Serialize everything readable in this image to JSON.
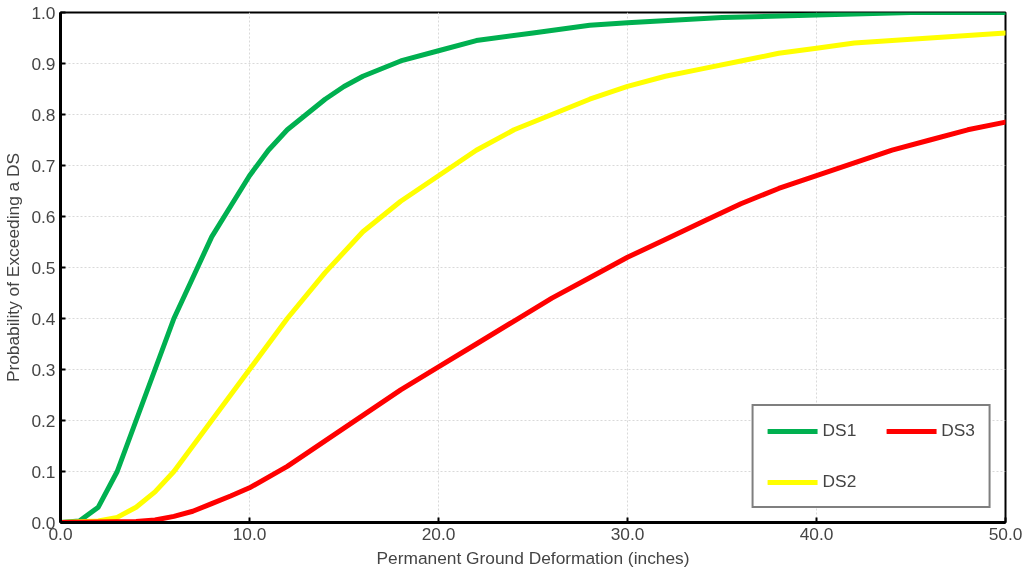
{
  "chart_data": {
    "type": "line",
    "xlabel": "Permanent Ground Deformation (inches)",
    "ylabel": "Probability of Exceeding a DS",
    "xlim": [
      0,
      50
    ],
    "ylim": [
      0,
      1
    ],
    "xticks": [
      {
        "value": 0,
        "label": "0.0"
      },
      {
        "value": 10,
        "label": "10.0"
      },
      {
        "value": 20,
        "label": "20.0"
      },
      {
        "value": 30,
        "label": "30.0"
      },
      {
        "value": 40,
        "label": "40.0"
      },
      {
        "value": 50,
        "label": "50.0"
      }
    ],
    "yticks": [
      {
        "value": 0,
        "label": "0.0"
      },
      {
        "value": 0.1,
        "label": "0.1"
      },
      {
        "value": 0.2,
        "label": "0.2"
      },
      {
        "value": 0.3,
        "label": "0.3"
      },
      {
        "value": 0.4,
        "label": "0.4"
      },
      {
        "value": 0.5,
        "label": "0.5"
      },
      {
        "value": 0.6,
        "label": "0.6"
      },
      {
        "value": 0.7,
        "label": "0.7"
      },
      {
        "value": 0.8,
        "label": "0.8"
      },
      {
        "value": 0.9,
        "label": "0.9"
      },
      {
        "value": 1.0,
        "label": "1.0"
      }
    ],
    "grid": true,
    "legend": "bottom right",
    "marker": "none",
    "line_style": "solid",
    "series": [
      {
        "name": "DS1",
        "color": "#00b050",
        "x": [
          0,
          1,
          2,
          3,
          4,
          5,
          6,
          7,
          8,
          9,
          10,
          11,
          12,
          13,
          14,
          15,
          16,
          18,
          20,
          22,
          25,
          28,
          30,
          35,
          40,
          45,
          50
        ],
        "values": [
          0,
          0.003,
          0.03,
          0.1,
          0.2,
          0.3,
          0.4,
          0.48,
          0.56,
          0.62,
          0.68,
          0.73,
          0.77,
          0.8,
          0.83,
          0.855,
          0.875,
          0.905,
          0.925,
          0.945,
          0.96,
          0.975,
          0.98,
          0.99,
          0.995,
          1.0,
          1.0
        ]
      },
      {
        "name": "DS2",
        "color": "#ffff00",
        "x": [
          0,
          2,
          3,
          4,
          5,
          6,
          7,
          8,
          10,
          12,
          14,
          16,
          18,
          20,
          22,
          24,
          26,
          28,
          30,
          32,
          34,
          36,
          38,
          40,
          42,
          44,
          46,
          48,
          50
        ],
        "values": [
          0,
          0.003,
          0.01,
          0.03,
          0.06,
          0.1,
          0.15,
          0.2,
          0.3,
          0.4,
          0.49,
          0.57,
          0.63,
          0.68,
          0.73,
          0.77,
          0.8,
          0.83,
          0.855,
          0.875,
          0.89,
          0.905,
          0.92,
          0.93,
          0.94,
          0.945,
          0.95,
          0.955,
          0.96
        ]
      },
      {
        "name": "DS3",
        "color": "#ff0000",
        "x": [
          0,
          4,
          5,
          6,
          7,
          8,
          9,
          10,
          12,
          14,
          16,
          18,
          20,
          22,
          24,
          26,
          28,
          30,
          32,
          34,
          36,
          38,
          40,
          42,
          44,
          46,
          48,
          50
        ],
        "values": [
          0,
          0.002,
          0.005,
          0.012,
          0.022,
          0.037,
          0.052,
          0.068,
          0.11,
          0.16,
          0.21,
          0.26,
          0.305,
          0.35,
          0.395,
          0.44,
          0.48,
          0.52,
          0.555,
          0.59,
          0.625,
          0.655,
          0.68,
          0.705,
          0.73,
          0.75,
          0.77,
          0.785
        ]
      }
    ]
  }
}
